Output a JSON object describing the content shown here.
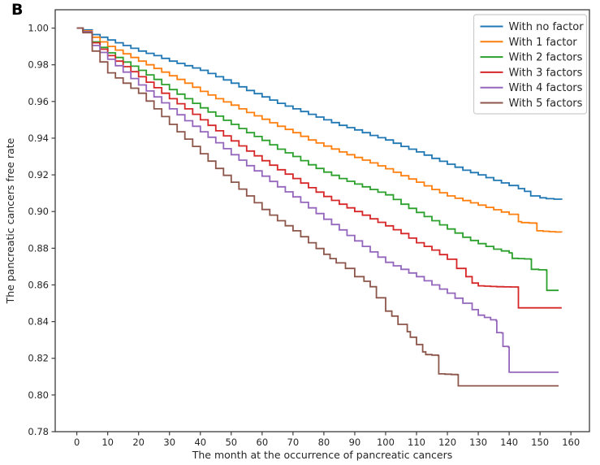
{
  "chart_data": {
    "type": "line",
    "subtype": "kaplan-meier-step",
    "panel_label": "B",
    "title": "",
    "xlabel": "The month at the occurrence of pancreatic cancers",
    "ylabel": "The pancreatic cancers free rate",
    "xlim": [
      -7,
      166
    ],
    "ylim": [
      0.78,
      1.01
    ],
    "xticks": [
      0,
      10,
      20,
      30,
      40,
      50,
      60,
      70,
      80,
      90,
      100,
      110,
      120,
      130,
      140,
      150,
      160
    ],
    "yticks": [
      0.78,
      0.8,
      0.82,
      0.84,
      0.86,
      0.88,
      0.9,
      0.92,
      0.94,
      0.96,
      0.98,
      1.0
    ],
    "grid": false,
    "legend_position": "upper right",
    "frame_color": "#3c3c3c",
    "legend_border_color": "#cccccc",
    "series": [
      {
        "name": "With no factor",
        "color": "#1f77b4",
        "points": [
          [
            0,
            1.0
          ],
          [
            2,
            0.999
          ],
          [
            5,
            0.9965
          ],
          [
            10,
            0.9935
          ],
          [
            15,
            0.9905
          ],
          [
            20,
            0.9875
          ],
          [
            25,
            0.985
          ],
          [
            30,
            0.982
          ],
          [
            35,
            0.9795
          ],
          [
            40,
            0.977
          ],
          [
            45,
            0.9735
          ],
          [
            50,
            0.97
          ],
          [
            55,
            0.966
          ],
          [
            60,
            0.9625
          ],
          [
            65,
            0.959
          ],
          [
            70,
            0.956
          ],
          [
            75,
            0.953
          ],
          [
            80,
            0.95
          ],
          [
            85,
            0.947
          ],
          [
            90,
            0.9445
          ],
          [
            95,
            0.9415
          ],
          [
            100,
            0.939
          ],
          [
            105,
            0.9355
          ],
          [
            110,
            0.9325
          ],
          [
            115,
            0.929
          ],
          [
            120,
            0.9258
          ],
          [
            125,
            0.9225
          ],
          [
            130,
            0.92
          ],
          [
            135,
            0.917
          ],
          [
            140,
            0.9142
          ],
          [
            143,
            0.9125
          ],
          [
            145,
            0.911
          ],
          [
            147,
            0.9085
          ],
          [
            150,
            0.9075
          ],
          [
            152,
            0.907
          ],
          [
            157,
            0.9065
          ]
        ]
      },
      {
        "name": "With 1 factor",
        "color": "#ff7f0e",
        "points": [
          [
            0,
            1.0
          ],
          [
            2,
            0.9985
          ],
          [
            5,
            0.995
          ],
          [
            10,
            0.99
          ],
          [
            15,
            0.986
          ],
          [
            20,
            0.982
          ],
          [
            25,
            0.978
          ],
          [
            30,
            0.974
          ],
          [
            35,
            0.97
          ],
          [
            40,
            0.9655
          ],
          [
            45,
            0.9615
          ],
          [
            50,
            0.958
          ],
          [
            55,
            0.954
          ],
          [
            60,
            0.9503
          ],
          [
            65,
            0.9465
          ],
          [
            70,
            0.943
          ],
          [
            75,
            0.939
          ],
          [
            80,
            0.9357
          ],
          [
            85,
            0.9325
          ],
          [
            90,
            0.9295
          ],
          [
            95,
            0.9265
          ],
          [
            100,
            0.9233
          ],
          [
            105,
            0.9195
          ],
          [
            110,
            0.916
          ],
          [
            115,
            0.912
          ],
          [
            120,
            0.9085
          ],
          [
            125,
            0.906
          ],
          [
            130,
            0.9035
          ],
          [
            135,
            0.901
          ],
          [
            140,
            0.8985
          ],
          [
            143,
            0.8945
          ],
          [
            144,
            0.894
          ],
          [
            148.8,
            0.8935
          ],
          [
            149,
            0.8895
          ],
          [
            153,
            0.889
          ],
          [
            157,
            0.8887
          ]
        ]
      },
      {
        "name": "With 2 factors",
        "color": "#2ca02c",
        "points": [
          [
            0,
            1.0
          ],
          [
            2,
            0.998
          ],
          [
            5,
            0.9925
          ],
          [
            10,
            0.9865
          ],
          [
            15,
            0.9815
          ],
          [
            20,
            0.977
          ],
          [
            25,
            0.972
          ],
          [
            30,
            0.9665
          ],
          [
            35,
            0.9615
          ],
          [
            40,
            0.9565
          ],
          [
            45,
            0.952
          ],
          [
            50,
            0.9475
          ],
          [
            55,
            0.943
          ],
          [
            60,
            0.9388
          ],
          [
            65,
            0.934
          ],
          [
            70,
            0.93
          ],
          [
            75,
            0.9255
          ],
          [
            80,
            0.9215
          ],
          [
            85,
            0.918
          ],
          [
            90,
            0.915
          ],
          [
            95,
            0.912
          ],
          [
            100,
            0.9091
          ],
          [
            105,
            0.904
          ],
          [
            110,
            0.8995
          ],
          [
            115,
            0.895
          ],
          [
            120,
            0.8905
          ],
          [
            125,
            0.886
          ],
          [
            130,
            0.8825
          ],
          [
            135,
            0.8795
          ],
          [
            140,
            0.8775
          ],
          [
            140.8,
            0.8773
          ],
          [
            141,
            0.8745
          ],
          [
            147,
            0.874
          ],
          [
            147.2,
            0.8685
          ],
          [
            152,
            0.868
          ],
          [
            152.2,
            0.857
          ],
          [
            156,
            0.857
          ]
        ]
      },
      {
        "name": "With 3 factors",
        "color": "#d62728",
        "points": [
          [
            0,
            1.0
          ],
          [
            2,
            0.998
          ],
          [
            5,
            0.992
          ],
          [
            10,
            0.985
          ],
          [
            15,
            0.979
          ],
          [
            20,
            0.9735
          ],
          [
            25,
            0.9675
          ],
          [
            30,
            0.9615
          ],
          [
            35,
            0.956
          ],
          [
            40,
            0.95
          ],
          [
            45,
            0.944
          ],
          [
            50,
            0.9385
          ],
          [
            55,
            0.933
          ],
          [
            60,
            0.9277
          ],
          [
            65,
            0.9228
          ],
          [
            70,
            0.918
          ],
          [
            75,
            0.913
          ],
          [
            80,
            0.9082
          ],
          [
            85,
            0.904
          ],
          [
            90,
            0.9
          ],
          [
            95,
            0.896
          ],
          [
            100,
            0.8922
          ],
          [
            105,
            0.888
          ],
          [
            110,
            0.883
          ],
          [
            115,
            0.879
          ],
          [
            120,
            0.874
          ],
          [
            123,
            0.869
          ],
          [
            126,
            0.8645
          ],
          [
            128,
            0.861
          ],
          [
            130,
            0.8595
          ],
          [
            136,
            0.859
          ],
          [
            142.8,
            0.8588
          ],
          [
            143,
            0.8475
          ],
          [
            157,
            0.8475
          ]
        ]
      },
      {
        "name": "With 4 factors",
        "color": "#9467bd",
        "points": [
          [
            0,
            1.0
          ],
          [
            2,
            0.998
          ],
          [
            5,
            0.9905
          ],
          [
            10,
            0.983
          ],
          [
            15,
            0.976
          ],
          [
            20,
            0.969
          ],
          [
            25,
            0.9625
          ],
          [
            30,
            0.956
          ],
          [
            35,
            0.9495
          ],
          [
            40,
            0.9435
          ],
          [
            45,
            0.9375
          ],
          [
            50,
            0.931
          ],
          [
            55,
            0.925
          ],
          [
            60,
            0.9193
          ],
          [
            65,
            0.9135
          ],
          [
            70,
            0.908
          ],
          [
            75,
            0.902
          ],
          [
            80,
            0.8958
          ],
          [
            85,
            0.89
          ],
          [
            90,
            0.884
          ],
          [
            95,
            0.878
          ],
          [
            100,
            0.8723
          ],
          [
            105,
            0.8685
          ],
          [
            110,
            0.8645
          ],
          [
            115,
            0.86
          ],
          [
            120,
            0.8555
          ],
          [
            125,
            0.85
          ],
          [
            128,
            0.8465
          ],
          [
            130,
            0.8435
          ],
          [
            134,
            0.841
          ],
          [
            135.8,
            0.8405
          ],
          [
            136,
            0.834
          ],
          [
            137.6,
            0.8338
          ],
          [
            138,
            0.8265
          ],
          [
            139.8,
            0.826
          ],
          [
            140,
            0.8124
          ],
          [
            156,
            0.8124
          ]
        ]
      },
      {
        "name": "With 5 factors",
        "color": "#8c564b",
        "points": [
          [
            0,
            1.0
          ],
          [
            2,
            0.9975
          ],
          [
            5,
            0.9875
          ],
          [
            10,
            0.9756
          ],
          [
            15,
            0.97
          ],
          [
            20,
            0.9645
          ],
          [
            25,
            0.956
          ],
          [
            30,
            0.9475
          ],
          [
            35,
            0.9395
          ],
          [
            40,
            0.9315
          ],
          [
            45,
            0.9235
          ],
          [
            50,
            0.916
          ],
          [
            55,
            0.9085
          ],
          [
            60,
            0.9011
          ],
          [
            65,
            0.895
          ],
          [
            70,
            0.8895
          ],
          [
            75,
            0.883
          ],
          [
            80,
            0.8767
          ],
          [
            84,
            0.872
          ],
          [
            87,
            0.869
          ],
          [
            90,
            0.8645
          ],
          [
            93,
            0.862
          ],
          [
            95,
            0.859
          ],
          [
            97,
            0.853
          ],
          [
            100,
            0.8457
          ],
          [
            102,
            0.843
          ],
          [
            104,
            0.8385
          ],
          [
            107,
            0.8345
          ],
          [
            108,
            0.8315
          ],
          [
            110,
            0.8275
          ],
          [
            112,
            0.8235
          ],
          [
            113,
            0.822
          ],
          [
            117,
            0.8215
          ],
          [
            117.2,
            0.8115
          ],
          [
            123.3,
            0.811
          ],
          [
            123.5,
            0.805
          ],
          [
            156,
            0.805
          ]
        ]
      }
    ]
  }
}
